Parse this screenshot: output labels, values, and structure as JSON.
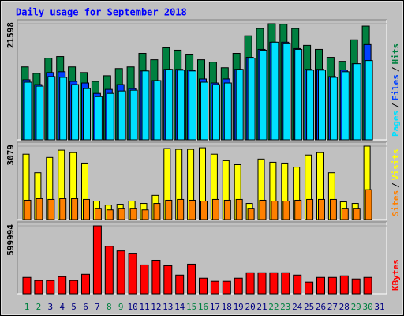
{
  "title": "Daily usage for September 2018",
  "separator": "/",
  "category_colors": [
    "#008040",
    "#008040",
    "#000080",
    "#000080",
    "#000080",
    "#000080",
    "#000080",
    "#008040",
    "#008040",
    "#000080",
    "#000080",
    "#000080",
    "#000080",
    "#000080",
    "#008040",
    "#008040",
    "#000080",
    "#000080",
    "#000080",
    "#000080",
    "#000080",
    "#008040",
    "#008040",
    "#000080",
    "#000080",
    "#000080",
    "#000080",
    "#000080",
    "#008040",
    "#008040",
    "#000080"
  ],
  "chart_data": [
    {
      "type": "bar",
      "ylim": [
        0,
        21598
      ],
      "yticks": [
        21598
      ],
      "series": [
        {
          "name": "Pages",
          "color": "#00e0ff",
          "values": [
            10724,
            9979,
            11767,
            11618,
            10278,
            9533,
            8043,
            8639,
            9086,
            9235,
            12810,
            11022,
            13108,
            12959,
            12810,
            10724,
            10278,
            10575,
            13108,
            15193,
            16683,
            18172,
            17874,
            16832,
            12959,
            12959,
            11618,
            12661,
            14150,
            14746,
            null
          ]
        },
        {
          "name": "Files",
          "color": "#0040ff",
          "values": [
            11171,
            10278,
            12512,
            12661,
            10873,
            10575,
            8639,
            9384,
            10278,
            9533,
            12810,
            11022,
            13108,
            13108,
            12959,
            11320,
            10575,
            11320,
            13108,
            15342,
            16832,
            18172,
            18172,
            16981,
            13108,
            13108,
            11767,
            12959,
            14150,
            17725,
            null
          ]
        },
        {
          "name": "Hits",
          "color": "#008040",
          "values": [
            13555,
            12363,
            15193,
            15491,
            13555,
            12512,
            10873,
            11916,
            13257,
            13555,
            16087,
            14895,
            17130,
            16683,
            15938,
            14895,
            14448,
            13406,
            16087,
            19364,
            20705,
            21598,
            21500,
            20705,
            17576,
            16832,
            15342,
            14597,
            18619,
            21151,
            null
          ]
        }
      ]
    },
    {
      "type": "bar",
      "ylim": [
        0,
        3079
      ],
      "yticks": [
        3079
      ],
      "series": [
        {
          "name": "Sites",
          "color": "#ff8000",
          "values": [
            812,
            880,
            846,
            880,
            880,
            846,
            474,
            406,
            474,
            474,
            406,
            677,
            812,
            846,
            812,
            778,
            846,
            812,
            846,
            474,
            812,
            778,
            778,
            812,
            846,
            846,
            846,
            474,
            474,
            1252,
            null
          ]
        },
        {
          "name": "Visits",
          "color": "#ffff00",
          "values": [
            2741,
            1963,
            2605,
            2910,
            2808,
            2369,
            778,
            609,
            643,
            778,
            677,
            1015,
            2978,
            2944,
            2944,
            3010,
            2741,
            2470,
            2301,
            677,
            2538,
            2403,
            2369,
            2199,
            2707,
            2808,
            1963,
            744,
            677,
            3079,
            null
          ]
        }
      ]
    },
    {
      "type": "bar",
      "ylim": [
        0,
        599994
      ],
      "yticks": [
        599994
      ],
      "categories": [
        "1",
        "2",
        "3",
        "4",
        "5",
        "6",
        "7",
        "8",
        "9",
        "10",
        "11",
        "12",
        "13",
        "14",
        "15",
        "16",
        "17",
        "18",
        "19",
        "20",
        "21",
        "22",
        "23",
        "24",
        "25",
        "26",
        "27",
        "28",
        "29",
        "30",
        "31"
      ],
      "series": [
        {
          "name": "KBytes",
          "color": "#ff0000",
          "values": [
            144826,
            117235,
            117235,
            151723,
            117235,
            172413,
            599994,
            420686,
            379307,
            358617,
            255169,
            296548,
            248272,
            165516,
            262066,
            137930,
            110339,
            110339,
            137930,
            186206,
            186206,
            186206,
            186206,
            165516,
            103443,
            144826,
            144826,
            158620,
            131033,
            144826,
            null
          ]
        }
      ]
    }
  ]
}
